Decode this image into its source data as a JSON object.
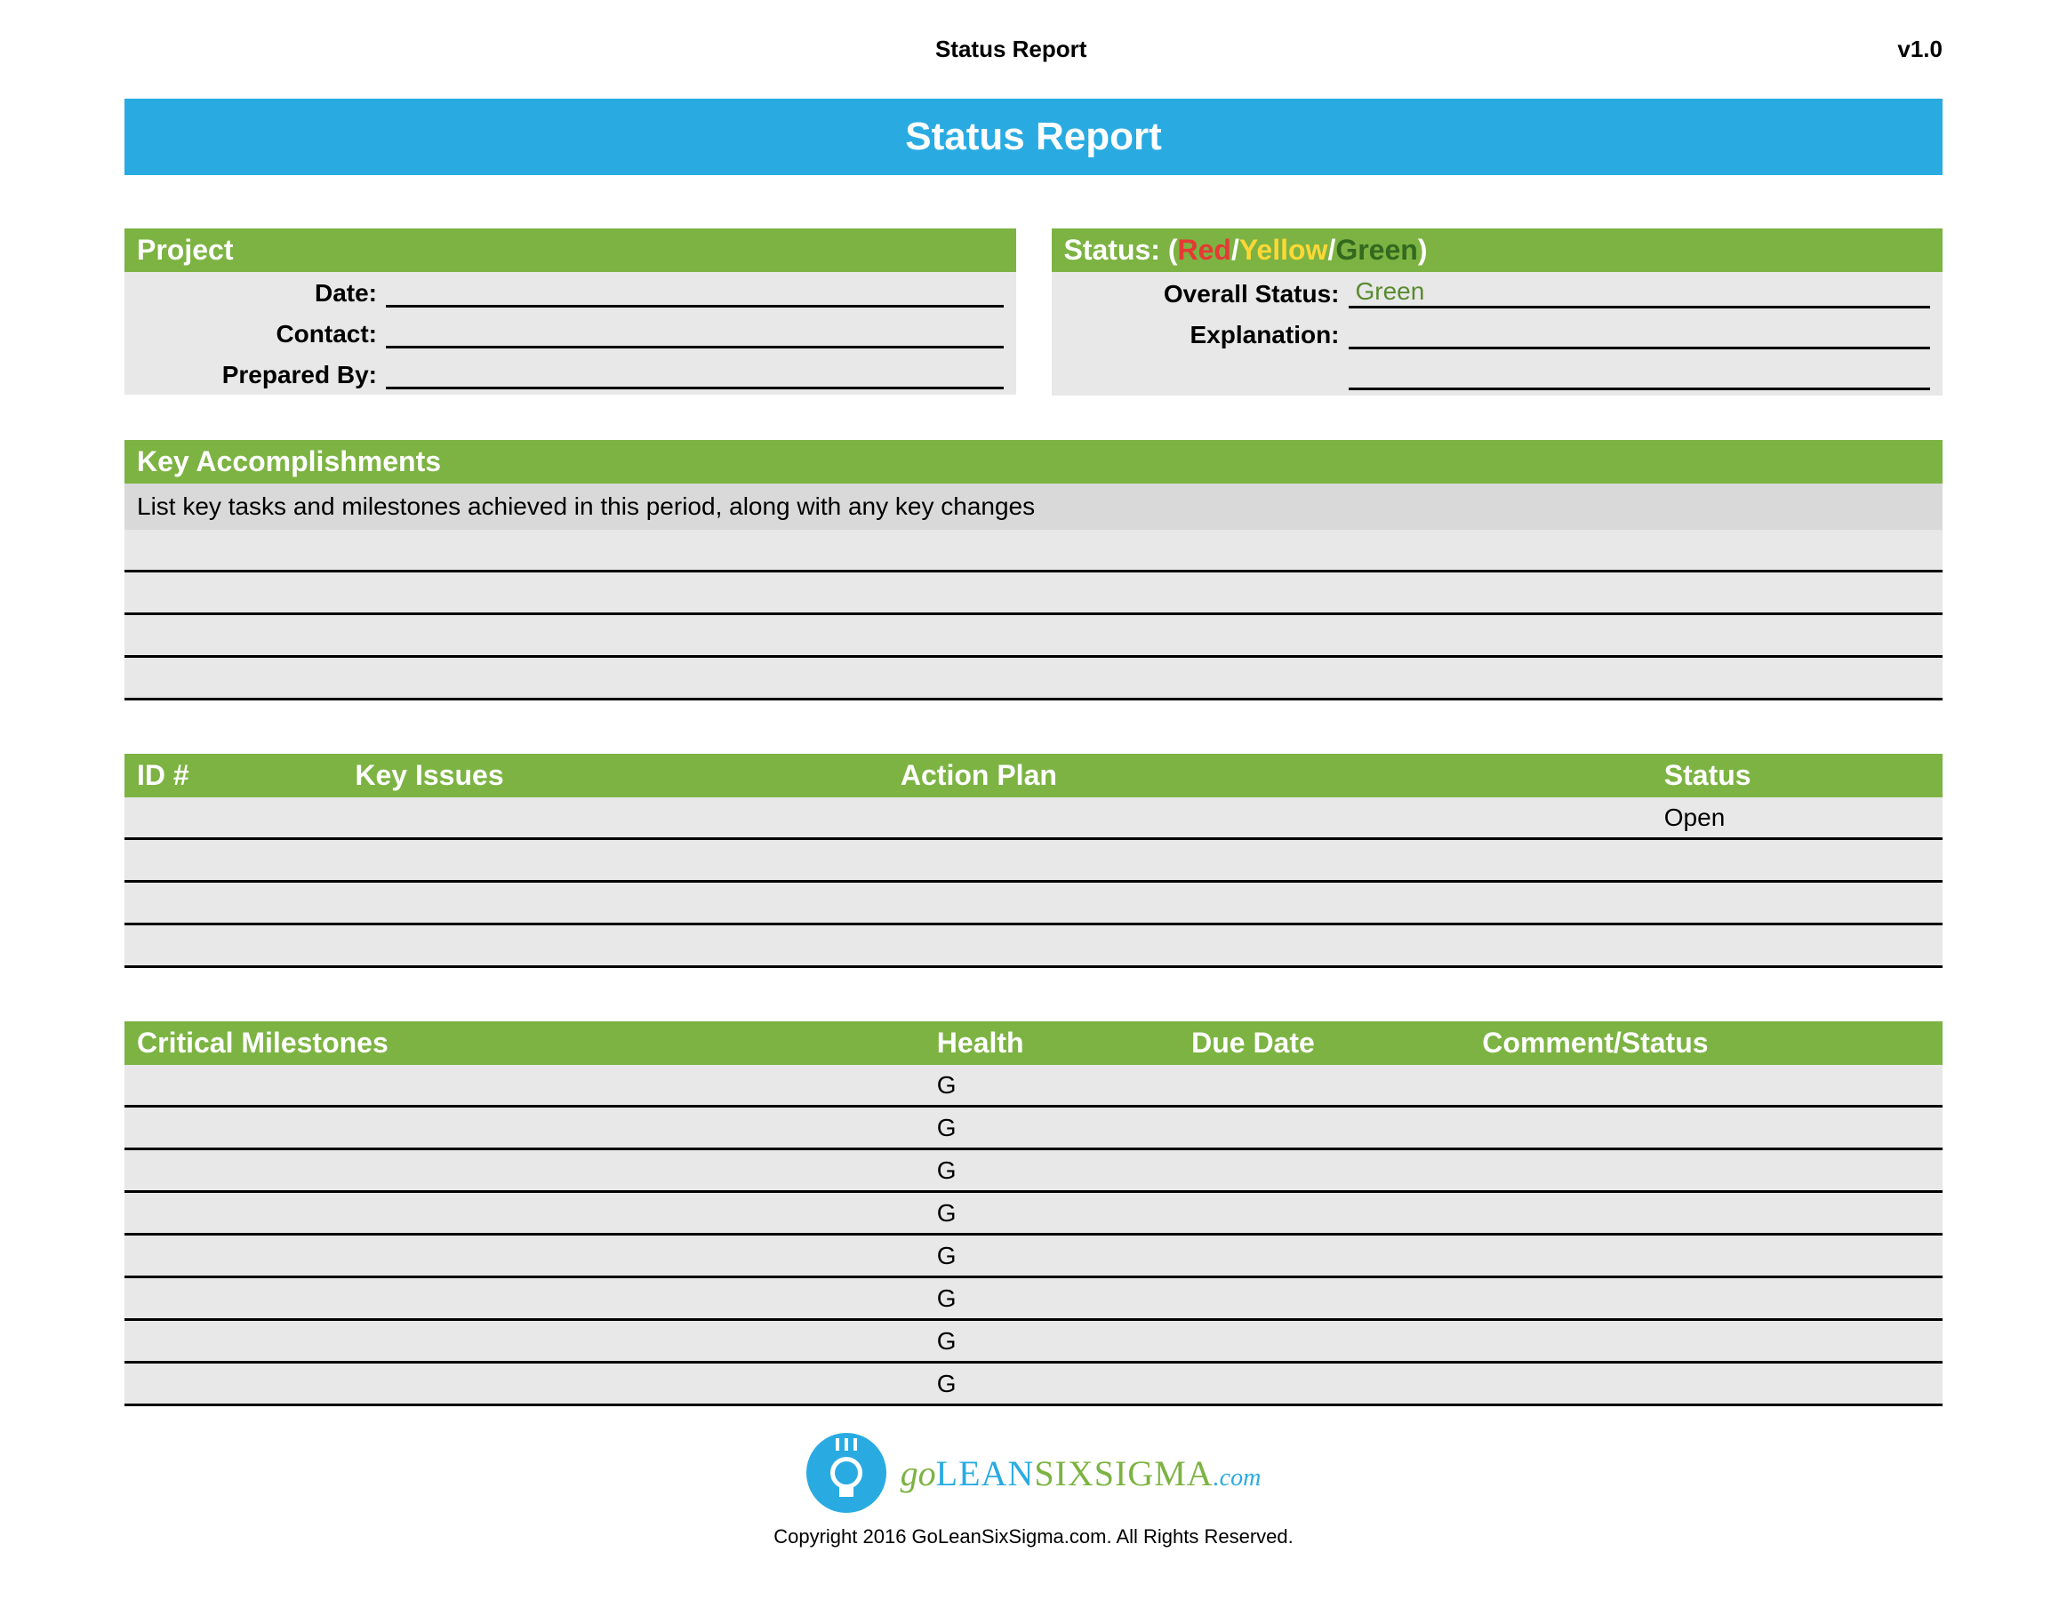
{
  "header": {
    "title": "Status Report",
    "version": "v1.0"
  },
  "banner": {
    "title": "Status Report"
  },
  "project": {
    "header": "Project",
    "fields": {
      "date_label": "Date:",
      "date_value": "",
      "contact_label": "Contact:",
      "contact_value": "",
      "prepared_label": "Prepared By:",
      "prepared_value": ""
    }
  },
  "status": {
    "header_prefix": "Status: (",
    "red": "Red",
    "sep1": "/",
    "yellow": "Yellow",
    "sep2": "/",
    "green": "Green",
    "header_suffix": ")",
    "overall_label": "Overall Status:",
    "overall_value": "Green",
    "explanation_label": "Explanation:",
    "explanation_value": "",
    "colors": {
      "red": "#e53935",
      "yellow": "#fdd835",
      "green": "#33691e"
    }
  },
  "accomplishments": {
    "header": "Key Accomplishments",
    "description": "List key tasks and milestones achieved in this period, along with any key changes",
    "rows": [
      "",
      "",
      "",
      ""
    ]
  },
  "issues": {
    "columns": {
      "id": "ID #",
      "key": "Key Issues",
      "action": "Action Plan",
      "status": "Status"
    },
    "rows": [
      {
        "id": "",
        "key": "",
        "action": "",
        "status": "Open"
      },
      {
        "id": "",
        "key": "",
        "action": "",
        "status": ""
      },
      {
        "id": "",
        "key": "",
        "action": "",
        "status": ""
      },
      {
        "id": "",
        "key": "",
        "action": "",
        "status": ""
      }
    ]
  },
  "milestones": {
    "columns": {
      "cm": "Critical Milestones",
      "health": "Health",
      "due": "Due Date",
      "comment": "Comment/Status"
    },
    "rows": [
      {
        "cm": "",
        "health": "G",
        "due": "",
        "comment": ""
      },
      {
        "cm": "",
        "health": "G",
        "due": "",
        "comment": ""
      },
      {
        "cm": "",
        "health": "G",
        "due": "",
        "comment": ""
      },
      {
        "cm": "",
        "health": "G",
        "due": "",
        "comment": ""
      },
      {
        "cm": "",
        "health": "G",
        "due": "",
        "comment": ""
      },
      {
        "cm": "",
        "health": "G",
        "due": "",
        "comment": ""
      },
      {
        "cm": "",
        "health": "G",
        "due": "",
        "comment": ""
      },
      {
        "cm": "",
        "health": "G",
        "due": "",
        "comment": ""
      }
    ]
  },
  "footer": {
    "brand_go": "go",
    "brand_lean": "LEAN",
    "brand_six": "SIXSIGMA",
    "brand_com": ".com",
    "copyright": "Copyright 2016 GoLeanSixSigma.com. All Rights Reserved."
  },
  "theme": {
    "blue": "#29abe2",
    "green_bg": "#7cb342",
    "row_gray": "#e8e8e8",
    "desc_gray": "#d9d9d9"
  }
}
